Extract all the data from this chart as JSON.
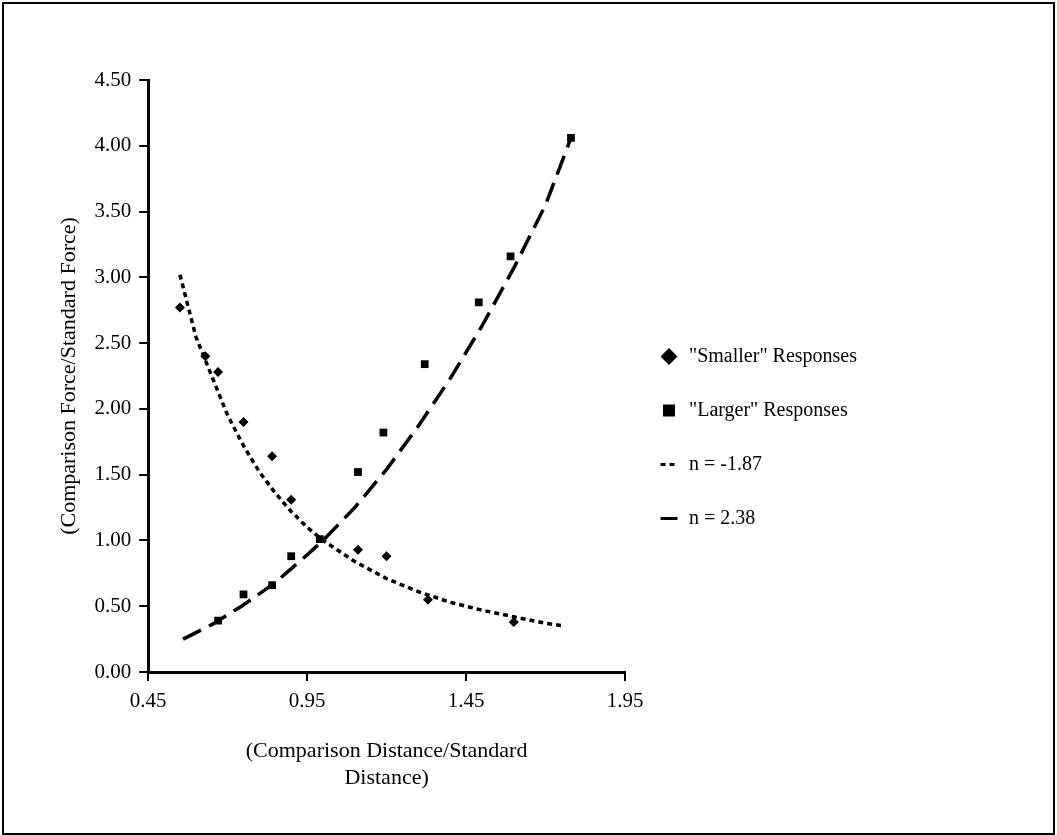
{
  "chart_data": {
    "type": "scatter",
    "xlabel": "(Comparison Distance/Standard Distance)",
    "ylabel": "(Comparison Force/Standard Force)",
    "xlim": [
      0.45,
      1.95
    ],
    "xticks": [
      {
        "value": 0.45,
        "label": "0.45"
      },
      {
        "value": 0.95,
        "label": "0.95"
      },
      {
        "value": 1.45,
        "label": "1.45"
      },
      {
        "value": 1.95,
        "label": "1.95"
      }
    ],
    "ylim": [
      0,
      4.5
    ],
    "yticks": [
      {
        "value": 0,
        "label": "0.00"
      },
      {
        "value": 0.5,
        "label": "0.50"
      },
      {
        "value": 1,
        "label": "1.00"
      },
      {
        "value": 1.5,
        "label": "1.50"
      },
      {
        "value": 2,
        "label": "2.00"
      },
      {
        "value": 2.5,
        "label": "2.50"
      },
      {
        "value": 3,
        "label": "3.00"
      },
      {
        "value": 3.5,
        "label": "3.50"
      },
      {
        "value": 4,
        "label": "4.00"
      },
      {
        "value": 4.5,
        "label": "4.50"
      }
    ],
    "grid": false,
    "legend": "right",
    "series": [
      {
        "name": "\"Smaller\" Responses",
        "type": "scatter",
        "marker": "diamond",
        "color": "#000000",
        "x": [
          0.55,
          0.63,
          0.67,
          0.75,
          0.84,
          0.9,
          1.11,
          1.2,
          1.33,
          1.6
        ],
        "values": [
          2.77,
          2.4,
          2.28,
          1.9,
          1.64,
          1.31,
          0.93,
          0.88,
          0.55,
          0.38
        ]
      },
      {
        "name": "\"Larger\" Responses",
        "type": "scatter",
        "marker": "square",
        "color": "#000000",
        "x": [
          0.67,
          0.75,
          0.84,
          0.9,
          0.99,
          1.11,
          1.19,
          1.32,
          1.49,
          1.59,
          1.78
        ],
        "values": [
          0.39,
          0.59,
          0.66,
          0.88,
          1.01,
          1.52,
          1.82,
          2.34,
          2.81,
          3.16,
          4.06
        ]
      },
      {
        "name": "n = -1.87",
        "type": "line",
        "line_style": "dotted",
        "marker": "none",
        "color": "#000000",
        "x": [
          0.55,
          0.6,
          0.65,
          0.7,
          0.75,
          0.8,
          0.85,
          0.9,
          0.95,
          1.0,
          1.1,
          1.2,
          1.3,
          1.4,
          1.5,
          1.6,
          1.7,
          1.76
        ],
        "values": [
          3.02,
          2.55,
          2.25,
          1.95,
          1.72,
          1.52,
          1.36,
          1.22,
          1.1,
          1.0,
          0.84,
          0.71,
          0.61,
          0.53,
          0.47,
          0.42,
          0.37,
          0.35
        ]
      },
      {
        "name": "n = 2.38",
        "type": "line",
        "line_style": "dashed",
        "marker": "none",
        "color": "#000000",
        "x": [
          0.56,
          0.65,
          0.75,
          0.85,
          0.95,
          1.0,
          1.1,
          1.2,
          1.3,
          1.4,
          1.5,
          1.6,
          1.7,
          1.78
        ],
        "values": [
          0.25,
          0.36,
          0.51,
          0.68,
          0.89,
          1.0,
          1.25,
          1.54,
          1.87,
          2.23,
          2.63,
          3.07,
          3.55,
          4.06
        ]
      }
    ]
  }
}
